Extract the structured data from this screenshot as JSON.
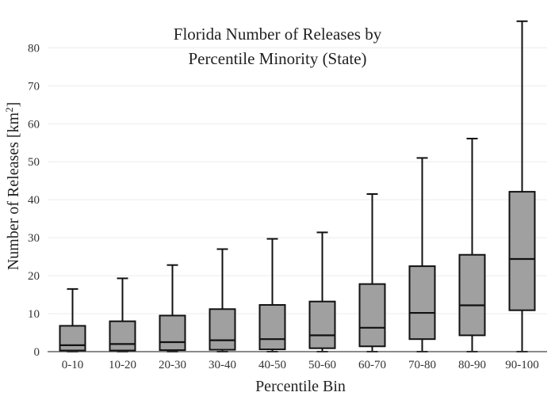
{
  "chart_data": {
    "type": "box",
    "title_line1": "Florida Number of Releases by",
    "title_line2": "Percentile Minority (State)",
    "xlabel": "Percentile Bin",
    "ylabel_main": "Number of Releases  [km",
    "ylabel_sup": "2",
    "ylabel_end": "]",
    "ylim": [
      0,
      88
    ],
    "yticks": [
      0,
      10,
      20,
      30,
      40,
      50,
      60,
      70,
      80
    ],
    "grid": true,
    "categories": [
      "0-10",
      "10-20",
      "20-30",
      "30-40",
      "40-50",
      "50-60",
      "60-70",
      "70-80",
      "80-90",
      "90-100"
    ],
    "boxes": [
      {
        "min": 0,
        "q1": 0.3,
        "median": 1.7,
        "q3": 6.8,
        "max": 16.5
      },
      {
        "min": 0,
        "q1": 0.3,
        "median": 2.0,
        "q3": 8.0,
        "max": 19.3
      },
      {
        "min": 0,
        "q1": 0.4,
        "median": 2.5,
        "q3": 9.5,
        "max": 22.8
      },
      {
        "min": 0,
        "q1": 0.5,
        "median": 3.0,
        "q3": 11.2,
        "max": 27.0
      },
      {
        "min": 0,
        "q1": 0.6,
        "median": 3.3,
        "q3": 12.3,
        "max": 29.7
      },
      {
        "min": 0,
        "q1": 0.9,
        "median": 4.3,
        "q3": 13.2,
        "max": 31.4
      },
      {
        "min": 0,
        "q1": 1.4,
        "median": 6.3,
        "q3": 17.8,
        "max": 41.5
      },
      {
        "min": 0,
        "q1": 3.3,
        "median": 10.2,
        "q3": 22.5,
        "max": 51.0
      },
      {
        "min": 0,
        "q1": 4.3,
        "median": 12.2,
        "q3": 25.5,
        "max": 56.1
      },
      {
        "min": 0,
        "q1": 10.9,
        "median": 24.4,
        "q3": 42.1,
        "max": 87.0
      }
    ]
  }
}
